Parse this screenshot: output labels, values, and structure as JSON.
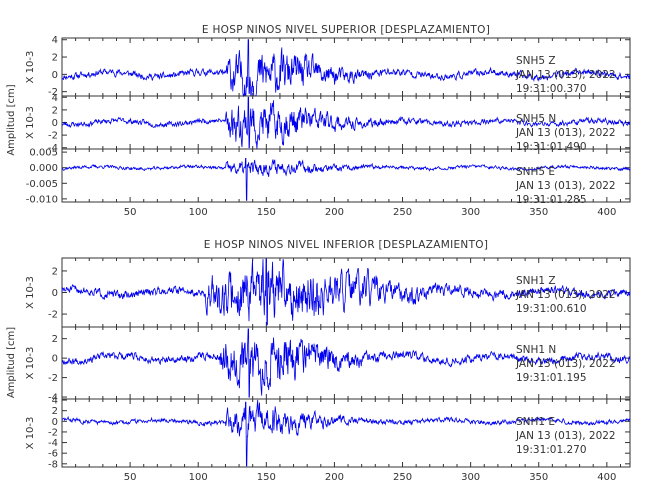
{
  "chart_data": [
    {
      "type": "line",
      "title": "E HOSP NINOS NIVEL SUPERIOR [DESPLAZAMIENTO]",
      "ylabel": "Amplitud [cm]",
      "xlim": [
        0,
        417
      ],
      "xticks": [
        50,
        100,
        150,
        200,
        250,
        300,
        350,
        400
      ],
      "series": [
        {
          "name": "SNH5 Z",
          "annotation": [
            "SNH5   Z",
            "JAN 13 (013), 2022",
            "19:31:00.370"
          ],
          "scale_label": "X 10-3",
          "ylim": [
            -2.5,
            4.2
          ],
          "yticks": [
            -2,
            0,
            2,
            4
          ],
          "baseline": 0.0,
          "noise": 0.45,
          "burst_peak": 2.6,
          "burst_start": 125,
          "burst_center": 140,
          "burst_width": 40,
          "spike_at": 137,
          "spike_peak": 4.0,
          "trough_min": -2.2,
          "seed": 11
        },
        {
          "name": "SNH5 N",
          "annotation": [
            "SNH5   N",
            "JAN 13 (013), 2022",
            "19:31:01.490"
          ],
          "scale_label": "X 10-3",
          "ylim": [
            -4.2,
            4.2
          ],
          "yticks": [
            -4,
            -2,
            0,
            2,
            4
          ],
          "baseline": 0.0,
          "noise": 0.5,
          "burst_peak": 3.2,
          "burst_start": 125,
          "burst_center": 140,
          "burst_width": 40,
          "spike_at": 137,
          "spike_peak": 4.0,
          "trough_min": -4.0,
          "seed": 23
        },
        {
          "name": "SNH5 E",
          "annotation": [
            "SNH5   E",
            "JAN 13 (013), 2022",
            "19:31:01.285"
          ],
          "scale_label": "",
          "ylim": [
            -0.011,
            0.006
          ],
          "yticks": [
            -0.01,
            -0.005,
            0.0,
            0.005
          ],
          "yticklabels": [
            "-0.010",
            "-0.005",
            "0.000",
            "0.005"
          ],
          "baseline": 0.0,
          "noise": 0.0006,
          "burst_peak": 0.0022,
          "burst_start": 125,
          "burst_center": 140,
          "burst_width": 40,
          "spike_at": 135,
          "spike_peak": 0.003,
          "trough_min": -0.0105,
          "seed": 37
        }
      ]
    },
    {
      "type": "line",
      "title": "E HOSP NINOS NIVEL INFERIOR [DESPLAZAMIENTO]",
      "ylabel": "Amplitud [cm]",
      "xlim": [
        0,
        417
      ],
      "xticks": [
        50,
        100,
        150,
        200,
        250,
        300,
        350,
        400
      ],
      "series": [
        {
          "name": "SNH1 Z",
          "annotation": [
            "SNH1   Z",
            "JAN 13 (013), 2022",
            "19:31:00.610"
          ],
          "scale_label": "X 10-3",
          "ylim": [
            -3.2,
            3.2
          ],
          "yticks": [
            -2,
            0,
            2
          ],
          "baseline": 0.0,
          "noise": 0.45,
          "burst_peak": 2.6,
          "burst_start": 110,
          "burst_center": 150,
          "burst_width": 60,
          "spike_at": 150,
          "spike_peak": 3.1,
          "trough_min": -3.0,
          "seed": 51
        },
        {
          "name": "SNH1 N",
          "annotation": [
            "SNH1   N",
            "JAN 13 (013), 2022",
            "19:31:01.195"
          ],
          "scale_label": "X 10-3",
          "ylim": [
            -4.2,
            3.2
          ],
          "yticks": [
            -4,
            -2,
            0,
            2
          ],
          "baseline": 0.0,
          "noise": 0.45,
          "burst_peak": 2.6,
          "burst_start": 120,
          "burst_center": 140,
          "burst_width": 40,
          "spike_at": 137,
          "spike_peak": 3.0,
          "trough_min": -4.0,
          "seed": 67
        },
        {
          "name": "SNH1 E",
          "annotation": [
            "SNH1   E",
            "JAN 13 (013), 2022",
            "19:31:01.270"
          ],
          "scale_label": "X 10-3",
          "ylim": [
            -8.6,
            4.2
          ],
          "yticks": [
            -8,
            -6,
            -4,
            -2,
            0,
            2,
            4
          ],
          "baseline": 0.0,
          "noise": 0.5,
          "burst_peak": 2.8,
          "burst_start": 125,
          "burst_center": 140,
          "burst_width": 35,
          "spike_at": 135,
          "spike_peak": 3.6,
          "trough_min": -8.4,
          "seed": 83
        }
      ]
    }
  ]
}
